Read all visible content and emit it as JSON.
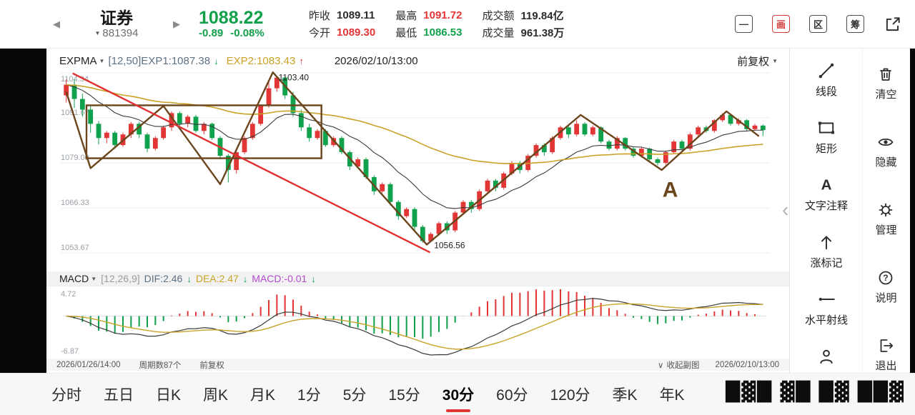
{
  "colors": {
    "up": "#e23535",
    "down": "#0fa14b",
    "green_text": "#12a04b",
    "yellow": "#c9a227",
    "annotation": "#6b451c",
    "trendline": "#e03030"
  },
  "topbar": {
    "title": "证券",
    "code": "881394",
    "price": "1088.22",
    "change": "-0.89",
    "change_pct": "-0.08%",
    "stats": [
      {
        "label": "昨收",
        "value": "1089.11",
        "color": "#2b2b2b"
      },
      {
        "label": "今开",
        "value": "1089.30",
        "color": "#e23535"
      },
      {
        "label": "最高",
        "value": "1091.72",
        "color": "#e23535"
      },
      {
        "label": "最低",
        "value": "1086.53",
        "color": "#12a04b"
      },
      {
        "label": "成交额",
        "value": "119.84亿",
        "color": "#2b2b2b"
      },
      {
        "label": "成交量",
        "value": "961.38万",
        "color": "#2b2b2b"
      }
    ],
    "icon_boxes": [
      "—",
      "画",
      "区",
      "筹"
    ]
  },
  "chart": {
    "header": {
      "name": "EXPMA",
      "left": "[12,50]EXP1:1087.38",
      "arrow1": "↓",
      "exp2": "EXP2:1083.43",
      "arrow2": "↑",
      "datetime": "2026/02/10/13:00",
      "adjust": "前复权"
    },
    "y_labels": [
      "1104.34",
      "1091.67",
      "1079.00",
      "1066.33",
      "1053.67"
    ]
  },
  "macd": {
    "header": {
      "name": "MACD",
      "params": "[12,26,9]",
      "dif": "DIF:2.46",
      "arrow1": "↓",
      "dea": "DEA:2.47",
      "arrow2": "↓",
      "macd": "MACD:-0.01",
      "arrow3": "↓"
    },
    "y_labels": [
      "4.72",
      "-6.87"
    ]
  },
  "footer": {
    "left_datetime": "2026/01/26/14:00",
    "period_count": "周期数87个",
    "adjust": "前复权",
    "collapse_icon": "∨",
    "collapse": "收起副图",
    "right_datetime": "2026/02/10/13:00"
  },
  "tools": {
    "items": [
      {
        "label": "线段",
        "icon": "line-segment"
      },
      {
        "label": "矩形",
        "icon": "rectangle"
      },
      {
        "label": "文字注释",
        "icon": "text-annotation"
      },
      {
        "label": "涨标记",
        "icon": "up-mark"
      },
      {
        "label": "水平射线",
        "icon": "horizontal-ray"
      },
      {
        "label": "",
        "icon": "person"
      }
    ]
  },
  "menu": {
    "items": [
      {
        "label": "清空",
        "icon": "trash"
      },
      {
        "label": "隐藏",
        "icon": "eye"
      },
      {
        "label": "管理",
        "icon": "gear"
      },
      {
        "label": "说明",
        "icon": "question"
      },
      {
        "label": "退出",
        "icon": "exit"
      }
    ]
  },
  "tabs": {
    "items": [
      "分时",
      "五日",
      "日K",
      "周K",
      "月K",
      "1分",
      "5分",
      "15分",
      "30分",
      "60分",
      "120分",
      "季K",
      "年K"
    ],
    "selected": "30分"
  },
  "watermark_glyphs": "█▓█ ▓█ █▓ ██▓",
  "chart_data": {
    "type": "candlestick",
    "symbol": "881394",
    "period": "30分",
    "x_axis": {
      "start": "2026/01/26/14:00",
      "end": "2026/02/10/13:00",
      "period_count": 87
    },
    "ylim": [
      1053.67,
      1104.34
    ],
    "colors": {
      "up": "#e23535",
      "down": "#0fa14b"
    },
    "overlays": [
      {
        "name": "EXP1",
        "period": 12,
        "color": "#3a3a3a",
        "width": 1.1
      },
      {
        "name": "EXP2",
        "period": 50,
        "color": "#c9a227",
        "width": 1.6
      }
    ],
    "candles": [
      [
        1098,
        1102.5,
        1096,
        1101
      ],
      [
        1101,
        1102.5,
        1094.5,
        1097
      ],
      [
        1097,
        1098.5,
        1092,
        1094
      ],
      [
        1094,
        1095,
        1087.5,
        1090
      ],
      [
        1090,
        1090.8,
        1084.2,
        1086
      ],
      [
        1086,
        1088,
        1084.5,
        1087.5
      ],
      [
        1087.5,
        1088,
        1083,
        1084
      ],
      [
        1084,
        1087.5,
        1083.5,
        1087
      ],
      [
        1087,
        1090.5,
        1086,
        1090
      ],
      [
        1090,
        1090.5,
        1086,
        1087
      ],
      [
        1087,
        1087.5,
        1082,
        1083
      ],
      [
        1083,
        1086.5,
        1082.5,
        1086
      ],
      [
        1086,
        1089.5,
        1085.5,
        1089
      ],
      [
        1089,
        1093.5,
        1088,
        1093
      ],
      [
        1093,
        1093.5,
        1089,
        1090
      ],
      [
        1090,
        1092.5,
        1089,
        1092
      ],
      [
        1092,
        1092.5,
        1087.5,
        1088
      ],
      [
        1088,
        1090.5,
        1087,
        1090
      ],
      [
        1090,
        1090.3,
        1085.5,
        1086
      ],
      [
        1086,
        1086.5,
        1080,
        1081
      ],
      [
        1081,
        1081.5,
        1073.5,
        1077
      ],
      [
        1077,
        1082.5,
        1076,
        1082
      ],
      [
        1082,
        1086.5,
        1081.5,
        1086
      ],
      [
        1086,
        1090.5,
        1085.5,
        1090
      ],
      [
        1090,
        1095.5,
        1089.5,
        1095
      ],
      [
        1095,
        1102,
        1094.5,
        1100
      ],
      [
        1100,
        1103.4,
        1099,
        1103
      ],
      [
        1103,
        1103.2,
        1097,
        1098
      ],
      [
        1098,
        1099,
        1092,
        1093
      ],
      [
        1093,
        1094,
        1088,
        1089
      ],
      [
        1089,
        1090,
        1085,
        1086
      ],
      [
        1086,
        1088.5,
        1085.5,
        1088
      ],
      [
        1088,
        1088.5,
        1083.5,
        1084
      ],
      [
        1084,
        1086.5,
        1083.5,
        1086
      ],
      [
        1086,
        1086.5,
        1081.5,
        1082
      ],
      [
        1082,
        1082.5,
        1077,
        1078
      ],
      [
        1078,
        1080.5,
        1077.5,
        1080
      ],
      [
        1080,
        1080.5,
        1074.5,
        1075
      ],
      [
        1075,
        1075.5,
        1070,
        1071
      ],
      [
        1071,
        1073.5,
        1070.5,
        1073
      ],
      [
        1073,
        1073.5,
        1067,
        1068
      ],
      [
        1068,
        1068.5,
        1063,
        1064
      ],
      [
        1064,
        1066.5,
        1063.5,
        1066
      ],
      [
        1066,
        1066.5,
        1060,
        1061
      ],
      [
        1061,
        1061.5,
        1056.56,
        1057
      ],
      [
        1057,
        1059.5,
        1056.8,
        1059
      ],
      [
        1059,
        1062.5,
        1058.5,
        1062
      ],
      [
        1062,
        1062.5,
        1059,
        1060
      ],
      [
        1060,
        1065.5,
        1059.5,
        1065
      ],
      [
        1065,
        1068.5,
        1064.5,
        1068
      ],
      [
        1068,
        1068.5,
        1065,
        1066
      ],
      [
        1066,
        1071.5,
        1065.5,
        1071
      ],
      [
        1071,
        1074.5,
        1070.5,
        1074
      ],
      [
        1074,
        1074.5,
        1071,
        1072
      ],
      [
        1072,
        1076.5,
        1071.5,
        1076
      ],
      [
        1076,
        1079.5,
        1075.5,
        1079
      ],
      [
        1079,
        1079.5,
        1076,
        1077
      ],
      [
        1077,
        1081.5,
        1076.5,
        1081
      ],
      [
        1081,
        1084.5,
        1080.5,
        1084
      ],
      [
        1084,
        1084.5,
        1081,
        1082
      ],
      [
        1082,
        1086.5,
        1081.5,
        1086
      ],
      [
        1086,
        1089.5,
        1085.5,
        1089
      ],
      [
        1089,
        1089.5,
        1086,
        1087
      ],
      [
        1087,
        1091,
        1086.5,
        1090
      ],
      [
        1090,
        1090.5,
        1086.5,
        1087
      ],
      [
        1087,
        1089.5,
        1086.5,
        1089
      ],
      [
        1089,
        1089.3,
        1084.5,
        1085
      ],
      [
        1085,
        1085.5,
        1082.5,
        1083
      ],
      [
        1083,
        1086.5,
        1082.5,
        1086
      ],
      [
        1086,
        1086.3,
        1082.5,
        1083
      ],
      [
        1083,
        1083.5,
        1080.5,
        1081
      ],
      [
        1081,
        1083.5,
        1080.5,
        1083
      ],
      [
        1083,
        1083.3,
        1079.5,
        1080
      ],
      [
        1080,
        1080.5,
        1078.3,
        1079
      ],
      [
        1079,
        1082.5,
        1078.5,
        1082
      ],
      [
        1082,
        1085.5,
        1081.5,
        1085
      ],
      [
        1085,
        1085.5,
        1082.5,
        1083
      ],
      [
        1083,
        1087.5,
        1082.5,
        1087
      ],
      [
        1087,
        1089.5,
        1086.5,
        1089
      ],
      [
        1089,
        1089.5,
        1087.5,
        1088
      ],
      [
        1088,
        1091.3,
        1087.5,
        1091
      ],
      [
        1091,
        1093,
        1090.5,
        1092.5
      ],
      [
        1092.5,
        1092.8,
        1089.5,
        1090
      ],
      [
        1090,
        1091.5,
        1089.5,
        1091
      ],
      [
        1091,
        1091.3,
        1088,
        1088.5
      ],
      [
        1088.5,
        1090,
        1088,
        1089.5
      ],
      [
        1089.5,
        1089.8,
        1086.53,
        1088.22
      ]
    ],
    "annotations": {
      "color": "#6b451c",
      "zigzag_points": [
        [
          0,
          1099
        ],
        [
          3,
          1077.5
        ],
        [
          12,
          1095
        ],
        [
          19,
          1073
        ],
        [
          25.5,
          1104.5
        ],
        [
          44.5,
          1056
        ],
        [
          63.5,
          1092.5
        ],
        [
          73.5,
          1077
        ],
        [
          81.5,
          1093.5
        ],
        [
          85.5,
          1086.5
        ]
      ],
      "trendline": {
        "color": "#e03030",
        "points": [
          [
            0.8,
            1104.2
          ],
          [
            44.9,
            1053.8
          ]
        ]
      },
      "rect": {
        "i1": 2.5,
        "p1": 1095.2,
        "i2": 31.5,
        "p2": 1080.3
      },
      "texts": [
        {
          "i": 26.2,
          "p": 1102.2,
          "text": "1103.40",
          "kind": "price"
        },
        {
          "i": 45.4,
          "p": 1055.0,
          "text": "1056.56",
          "kind": "price"
        },
        {
          "i": 73.6,
          "p": 1069.5,
          "text": "A",
          "kind": "letter"
        }
      ]
    }
  }
}
